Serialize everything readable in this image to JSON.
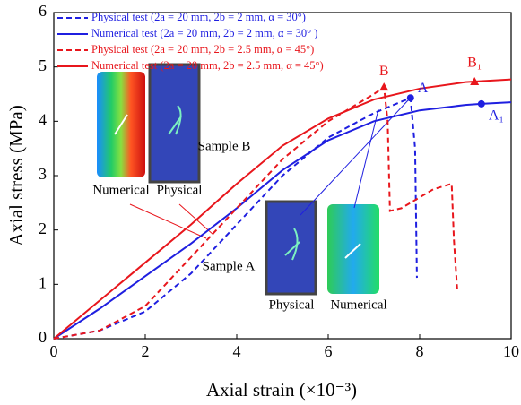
{
  "chart_data": {
    "type": "line",
    "x_label": "Axial strain  (×10⁻³)",
    "y_label": "Axial stress (MPa)",
    "xlim": [
      0,
      10
    ],
    "xticks": [
      0,
      2,
      4,
      6,
      8,
      10
    ],
    "ylim": [
      0,
      6
    ],
    "yticks": [
      0,
      1,
      2,
      3,
      4,
      5,
      6
    ],
    "legend": "upper left",
    "series": [
      {
        "name": "Physical test (2a = 20 mm, 2b = 2 mm, α = 30°)",
        "color": "#1f1fe0",
        "dashed": true,
        "x": [
          0,
          1,
          2,
          3,
          4,
          5,
          6,
          7,
          7.8,
          7.9,
          7.94
        ],
        "values": [
          0,
          0.15,
          0.5,
          1.2,
          2.1,
          3.0,
          3.7,
          4.15,
          4.43,
          3.5,
          1.12
        ]
      },
      {
        "name": "Numerical test (2a = 20 mm, 2b = 2 mm, α = 30°  )",
        "color": "#1f1fe0",
        "dashed": false,
        "x": [
          0,
          1,
          2,
          3,
          4,
          5,
          6,
          7,
          8,
          9,
          9.35,
          10
        ],
        "values": [
          0,
          0.55,
          1.15,
          1.75,
          2.4,
          3.1,
          3.65,
          4.0,
          4.2,
          4.3,
          4.32,
          4.35
        ]
      },
      {
        "name": "Physical test (2a = 20 mm, 2b = 2.5 mm, α = 45°)",
        "color": "#e8161c",
        "dashed": true,
        "x": [
          0,
          1,
          2,
          3,
          4,
          5,
          6,
          7,
          7.22,
          7.3,
          7.35,
          7.6,
          8.0,
          8.3,
          8.7,
          8.75,
          8.82
        ],
        "values": [
          0,
          0.15,
          0.6,
          1.5,
          2.4,
          3.3,
          4.0,
          4.5,
          4.63,
          4.0,
          2.35,
          2.4,
          2.6,
          2.75,
          2.85,
          1.8,
          0.92
        ]
      },
      {
        "name": "Numerical test (2a = 20 mm, 2b = 2.5 mm, α = 45°)",
        "color": "#e8161c",
        "dashed": false,
        "x": [
          0,
          1,
          2,
          3,
          4,
          5,
          6,
          7,
          8,
          9,
          9.2,
          10
        ],
        "values": [
          0,
          0.7,
          1.4,
          2.1,
          2.85,
          3.55,
          4.05,
          4.4,
          4.6,
          4.72,
          4.73,
          4.77
        ]
      }
    ],
    "points": [
      {
        "label": "A",
        "series": 0,
        "x": 7.8,
        "y": 4.43,
        "marker": "circle"
      },
      {
        "label": "A₁",
        "series": 1,
        "x": 9.35,
        "y": 4.32,
        "marker": "circle"
      },
      {
        "label": "B",
        "series": 2,
        "x": 7.22,
        "y": 4.63,
        "marker": "triangle"
      },
      {
        "label": "B₁",
        "series": 3,
        "x": 9.2,
        "y": 4.73,
        "marker": "triangle"
      }
    ],
    "annotations": [
      "Numerical",
      "Physical",
      "Sample B",
      "Sample A",
      "Physical",
      "Numerical"
    ]
  }
}
